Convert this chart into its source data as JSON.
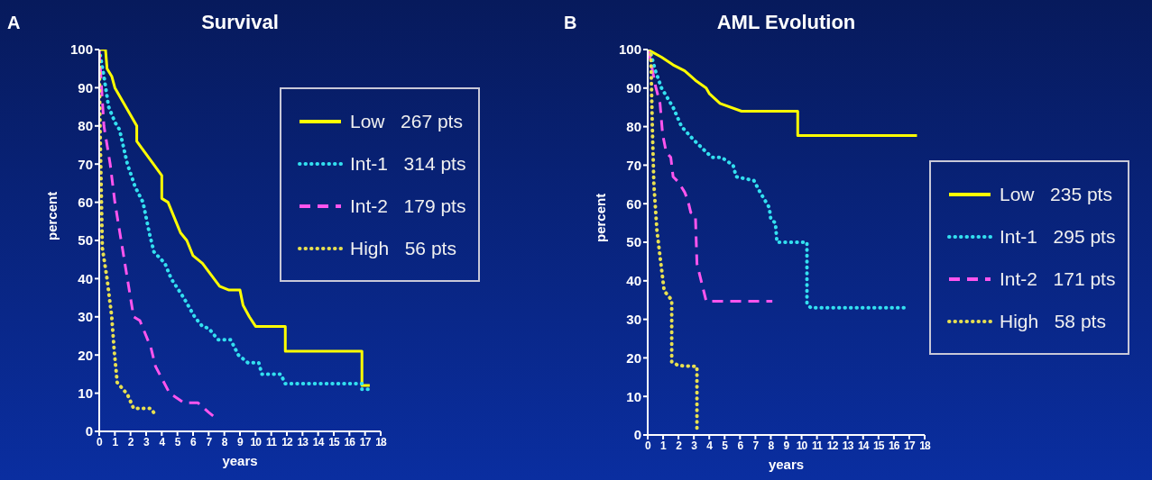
{
  "chart_data": [
    {
      "type": "line",
      "title": "Survival",
      "xlabel": "years",
      "ylabel": "percent",
      "annotations": [
        "A"
      ],
      "xlim": [
        0,
        18
      ],
      "xticks": [
        0,
        1,
        2,
        3,
        4,
        5,
        6,
        7,
        8,
        9,
        10,
        11,
        12,
        13,
        14,
        15,
        16,
        17,
        18
      ],
      "ylim": [
        0,
        100
      ],
      "yticks": [
        0,
        10,
        20,
        30,
        40,
        50,
        60,
        70,
        80,
        90,
        100
      ],
      "legend": "top right",
      "marker": "none",
      "series": [
        {
          "name": "Low   267 pts",
          "color": "#ffff00",
          "line_style": "solid",
          "x": [
            0,
            0.4,
            0.5,
            0.8,
            1,
            2.4,
            2.4,
            4,
            4,
            4.4,
            5.2,
            5.6,
            6,
            6.6,
            7.7,
            8.3,
            9,
            9.2,
            9.6,
            10,
            11.9,
            11.9,
            16.8,
            16.8,
            17.3
          ],
          "values": [
            100,
            100,
            95,
            93,
            90,
            80,
            76,
            67,
            61,
            60,
            52,
            50,
            46,
            44,
            38,
            37,
            37,
            33,
            30,
            27.5,
            27.5,
            21,
            21,
            12,
            12
          ]
        },
        {
          "name": "Int-1   314 pts",
          "color": "#33e0f0",
          "line_style": "dotted",
          "x": [
            0,
            0.3,
            0.6,
            1,
            1.3,
            1.8,
            2.3,
            2.8,
            3.2,
            3.5,
            4.2,
            4.6,
            5.4,
            6.1,
            6.6,
            7,
            7.6,
            8.4,
            8.9,
            9.5,
            10.2,
            10.4,
            11.6,
            11.9,
            16.8,
            16.8,
            17.4
          ],
          "values": [
            100,
            93,
            85,
            81,
            79,
            70,
            64,
            60,
            52,
            47,
            44,
            40,
            35,
            30,
            27.5,
            27,
            24,
            24,
            20,
            18,
            18,
            15,
            15,
            12.5,
            12.5,
            11,
            11
          ]
        },
        {
          "name": "Int-2   179 pts",
          "color": "#ff55ee",
          "line_style": "dashed",
          "x": [
            0,
            0.3,
            0.7,
            1,
            1.4,
            1.8,
            2.2,
            2.6,
            3.3,
            3.6,
            4.5,
            5.4,
            6.3,
            7,
            7.3
          ],
          "values": [
            100,
            80,
            70,
            60,
            50,
            40,
            30,
            29,
            22,
            17,
            10,
            7.5,
            7.5,
            5,
            4
          ]
        },
        {
          "name": "High   56 pts",
          "color": "#e8e050",
          "line_style": "dotted",
          "x": [
            0,
            0.05,
            0.2,
            0.5,
            0.8,
            0.96,
            1.15,
            1.8,
            2.2,
            3.3,
            3.65
          ],
          "values": [
            100,
            80,
            48,
            40,
            30,
            21,
            12.8,
            9.7,
            6,
            6,
            4
          ]
        }
      ]
    },
    {
      "type": "line",
      "title": "AML Evolution",
      "xlabel": "years",
      "ylabel": "percent",
      "annotations": [
        "B"
      ],
      "xlim": [
        0,
        18
      ],
      "xticks": [
        0,
        1,
        2,
        3,
        4,
        5,
        6,
        7,
        8,
        9,
        10,
        11,
        12,
        13,
        14,
        15,
        16,
        17,
        18
      ],
      "ylim": [
        0,
        100
      ],
      "yticks": [
        0,
        10,
        20,
        30,
        40,
        50,
        60,
        70,
        80,
        90,
        100
      ],
      "legend": "right",
      "marker": "none",
      "series": [
        {
          "name": "Low   235 pts",
          "color": "#ffff00",
          "line_style": "solid",
          "x": [
            0,
            0.9,
            1.65,
            2.4,
            3.1,
            3.8,
            4,
            4.7,
            6.1,
            9.75,
            9.75,
            17.5
          ],
          "values": [
            100,
            98,
            96,
            94.5,
            92,
            90,
            88.6,
            86,
            84,
            84,
            77.7,
            77.7
          ]
        },
        {
          "name": "Int-1   295 pts",
          "color": "#33e0f0",
          "line_style": "dotted",
          "x": [
            0,
            0.2,
            0.5,
            0.9,
            1.65,
            2.2,
            3,
            3.8,
            4.2,
            4.8,
            5.55,
            5.75,
            6.9,
            7.3,
            7.9,
            8,
            8.3,
            8.4,
            10.35,
            10.35,
            10.6,
            16.8
          ],
          "values": [
            100,
            99,
            94.5,
            90,
            85,
            80,
            76.5,
            73.4,
            72,
            72,
            70,
            67,
            66,
            63,
            59,
            56,
            55,
            50,
            50,
            34,
            33,
            33
          ]
        },
        {
          "name": "Int-2   171 pts",
          "color": "#ff55ee",
          "line_style": "dashed",
          "x": [
            0,
            0.1,
            0.5,
            0.8,
            0.97,
            1.2,
            1.5,
            1.65,
            2,
            2.4,
            2.6,
            2.8,
            3.1,
            3.2,
            3.6,
            3.8,
            8.1
          ],
          "values": [
            100,
            99,
            90.6,
            86,
            78,
            73.4,
            72,
            67,
            65.6,
            63,
            61,
            57.7,
            57,
            44.4,
            38,
            34.7,
            34.7
          ]
        },
        {
          "name": "High   58 pts",
          "color": "#e8e050",
          "line_style": "dotted",
          "x": [
            0,
            0.2,
            0.3,
            0.4,
            0.6,
            0.9,
            1.07,
            1.56,
            1.56,
            2,
            3.2,
            3.2
          ],
          "values": [
            100,
            99,
            80,
            65,
            53,
            43,
            37.4,
            35,
            19,
            18,
            17.8,
            1.5
          ]
        }
      ]
    }
  ]
}
